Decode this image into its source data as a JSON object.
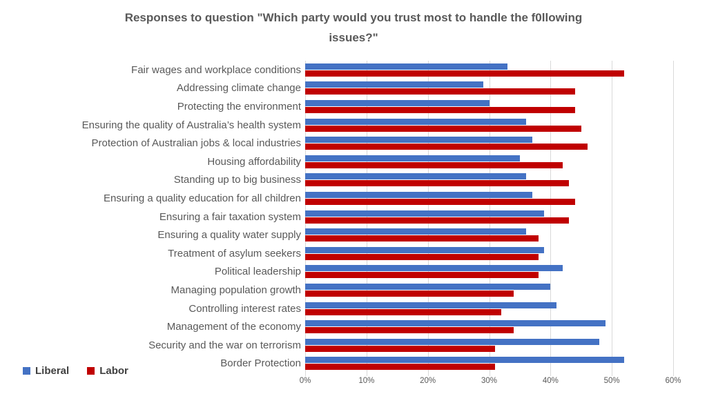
{
  "chart_data": {
    "type": "bar",
    "orientation": "horizontal",
    "title": "Responses to question \"Which party would you trust most to handle the f0llowing issues?\"",
    "categories": [
      "Fair wages and workplace conditions",
      "Addressing climate change",
      "Protecting the environment",
      "Ensuring the quality of Australia’s health system",
      "Protection of Australian jobs & local industries",
      "Housing affordability",
      "Standing up to big business",
      "Ensuring a quality education for all children",
      "Ensuring a fair taxation system",
      "Ensuring a quality water supply",
      "Treatment of asylum seekers",
      "Political leadership",
      "Managing population growth",
      "Controlling interest rates",
      "Management of the economy",
      "Security and the war on terrorism",
      "Border Protection"
    ],
    "series": [
      {
        "name": "Liberal",
        "color": "#4472C4",
        "values": [
          33,
          29,
          30,
          36,
          37,
          35,
          36,
          37,
          39,
          36,
          39,
          42,
          40,
          41,
          49,
          48,
          52
        ]
      },
      {
        "name": "Labor",
        "color": "#C00000",
        "values": [
          52,
          44,
          44,
          45,
          46,
          42,
          43,
          44,
          43,
          38,
          38,
          38,
          34,
          32,
          34,
          31,
          31
        ]
      }
    ],
    "x_axis": {
      "min": 0,
      "max": 60,
      "tick_values": [
        0,
        10,
        20,
        30,
        40,
        50,
        60
      ],
      "tick_labels": [
        "0%",
        "10%",
        "20%",
        "30%",
        "40%",
        "50%",
        "60%"
      ],
      "grid": true
    },
    "legend_position": "bottom-left",
    "colors": {
      "gridline": "#d9d9d9",
      "title_text": "#595959",
      "category_text": "#595959",
      "axis_text": "#595959",
      "legend_text": "#404040",
      "background": "#ffffff"
    }
  }
}
